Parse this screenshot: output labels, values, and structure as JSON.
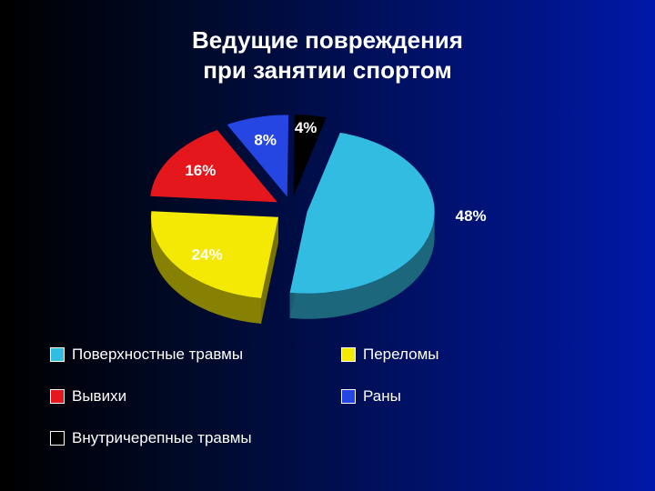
{
  "title": "Ведущие повреждения\nпри занятии спортом",
  "chart": {
    "type": "pie",
    "exploded": true,
    "background_gradient": [
      "#000000",
      "#000a2a",
      "#0018a8"
    ],
    "title_color": "#ffffff",
    "title_fontsize": 26,
    "label_fontsize": 17,
    "label_color": "#ffffff",
    "side_darken": 0.55,
    "slices": [
      {
        "name": "Поверхностные травмы",
        "value": 48,
        "label": "48%",
        "color": "#33bce2"
      },
      {
        "name": "Переломы",
        "value": 24,
        "label": "24%",
        "color": "#f4e805"
      },
      {
        "name": "Вывихи",
        "value": 16,
        "label": "16%",
        "color": "#e4171c"
      },
      {
        "name": "Раны",
        "value": 8,
        "label": "8%",
        "color": "#2546e2"
      },
      {
        "name": "Внутричерепные травмы",
        "value": 4,
        "label": "4%",
        "color": "#000000"
      }
    ],
    "legend_order": [
      0,
      1,
      2,
      3,
      4
    ]
  }
}
